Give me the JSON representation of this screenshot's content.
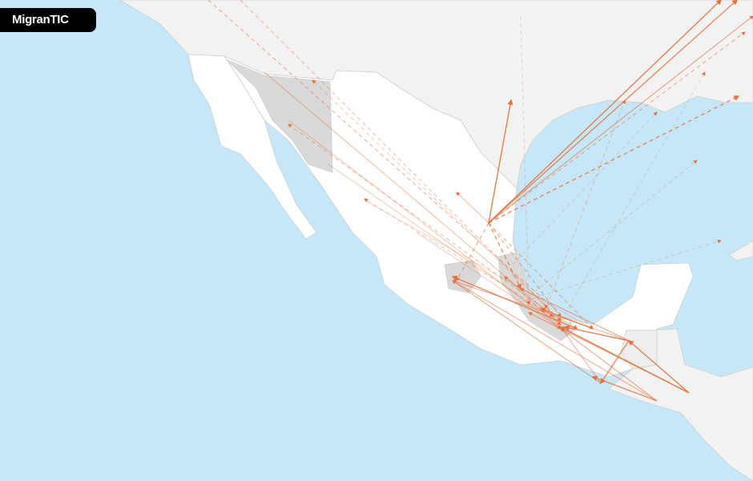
{
  "app": {
    "title": "MigranTIC"
  },
  "map": {
    "colors": {
      "water": "#c6e7f7",
      "land_foreign": "#f2f2f2",
      "land_mexico": "#ffffff",
      "highlighted_states": "#d9d9d9",
      "flow": "#e8703a",
      "borders": "#cccccc"
    },
    "flow_styles": [
      "solid",
      "dashed"
    ]
  }
}
